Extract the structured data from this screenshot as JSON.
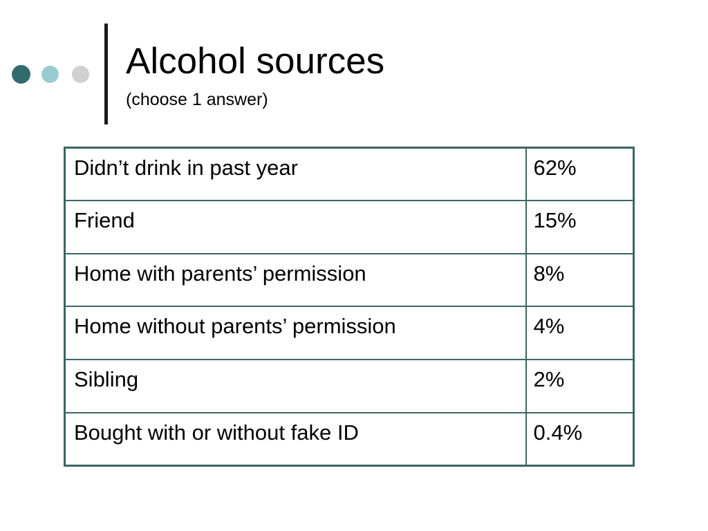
{
  "slide": {
    "title": "Alcohol sources",
    "subtitle": "(choose 1 answer)",
    "accent_colors": [
      "#336a6e",
      "#99ccd0",
      "#cfd0d1"
    ],
    "table_border_color": "#3c6464"
  },
  "table": {
    "rows": [
      {
        "label": "Didn’t drink in past year",
        "value": "62%"
      },
      {
        "label": "Friend",
        "value": "15%"
      },
      {
        "label": "Home with parents’ permission",
        "value": "8%"
      },
      {
        "label": "Home without parents’ permission",
        "value": "4%"
      },
      {
        "label": "Sibling",
        "value": "2%"
      },
      {
        "label": "Bought with or without fake ID",
        "value": "0.4%"
      }
    ]
  }
}
